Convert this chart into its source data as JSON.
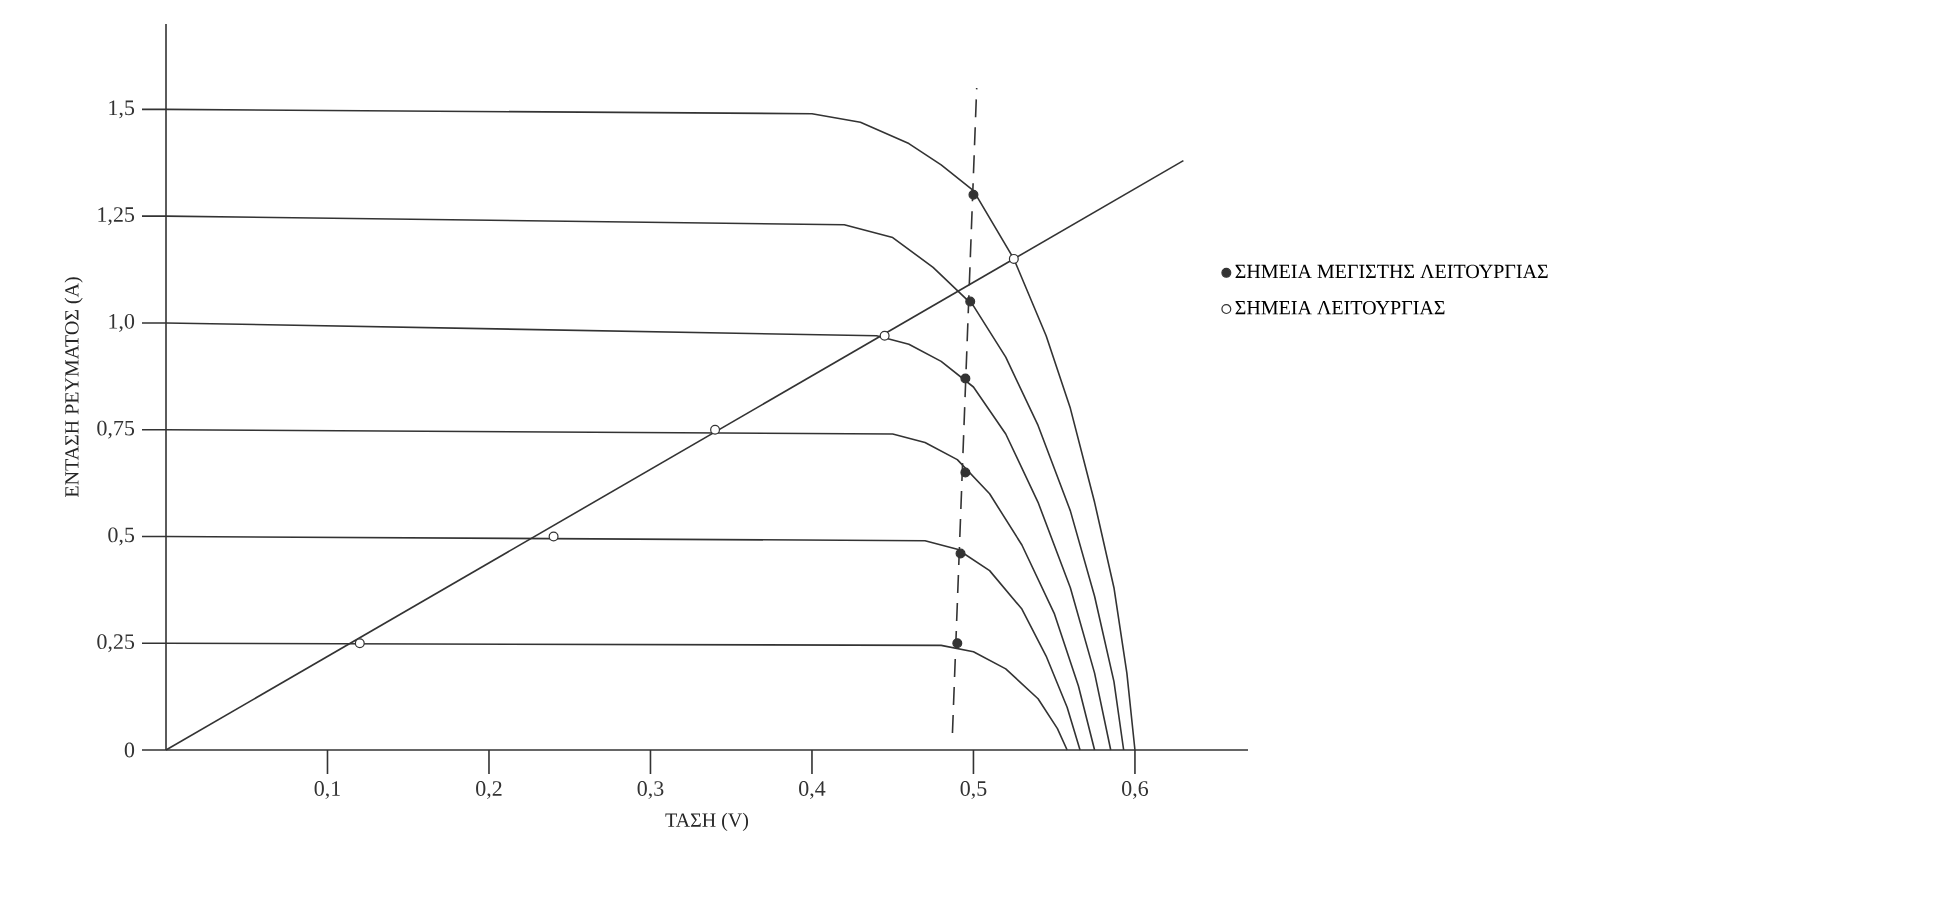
{
  "chart_data": {
    "type": "line",
    "xlabel": "ΤΑΣΗ (V)",
    "ylabel": "ΕΝΤΑΣΗ ΡΕΥΜΑΤΟΣ (A)",
    "xlim": [
      0,
      0.67
    ],
    "ylim": [
      0,
      1.7
    ],
    "xticks": [
      {
        "value": 0.1,
        "label": "0,1"
      },
      {
        "value": 0.2,
        "label": "0,2"
      },
      {
        "value": 0.3,
        "label": "0,3"
      },
      {
        "value": 0.4,
        "label": "0,4"
      },
      {
        "value": 0.5,
        "label": "0,5"
      },
      {
        "value": 0.6,
        "label": "0,6"
      }
    ],
    "yticks": [
      0,
      {
        "value": 0.25,
        "label": "0,25"
      },
      {
        "value": 0.5,
        "label": "0,5"
      },
      {
        "value": 0.75,
        "label": "0,75"
      },
      {
        "value": 1.0,
        "label": "1,0"
      },
      {
        "value": 1.25,
        "label": "1,25"
      },
      {
        "value": 1.5,
        "label": "1,5"
      }
    ],
    "grid": false,
    "legend": "right",
    "marker": "none",
    "line_style": "solid",
    "series": [
      {
        "color": "#333333",
        "x": [
          0,
          0.4,
          0.43,
          0.46,
          0.48,
          0.5,
          0.525,
          0.545,
          0.56,
          0.575,
          0.587,
          0.595,
          0.6
        ],
        "values": [
          1.5,
          1.49,
          1.47,
          1.42,
          1.37,
          1.31,
          1.15,
          0.97,
          0.8,
          0.58,
          0.38,
          0.18,
          0
        ]
      },
      {
        "color": "#333333",
        "x": [
          0,
          0.42,
          0.45,
          0.475,
          0.5,
          0.52,
          0.54,
          0.56,
          0.575,
          0.587,
          0.593
        ],
        "values": [
          1.25,
          1.23,
          1.2,
          1.13,
          1.04,
          0.92,
          0.76,
          0.56,
          0.36,
          0.16,
          0
        ]
      },
      {
        "color": "#333333",
        "x": [
          0,
          0.44,
          0.46,
          0.48,
          0.5,
          0.52,
          0.54,
          0.56,
          0.575,
          0.585
        ],
        "values": [
          1.0,
          0.97,
          0.95,
          0.91,
          0.85,
          0.74,
          0.58,
          0.38,
          0.18,
          0
        ]
      },
      {
        "color": "#333333",
        "x": [
          0,
          0.45,
          0.47,
          0.49,
          0.51,
          0.53,
          0.55,
          0.565,
          0.575
        ],
        "values": [
          0.75,
          0.74,
          0.72,
          0.68,
          0.6,
          0.48,
          0.32,
          0.15,
          0
        ]
      },
      {
        "color": "#333333",
        "x": [
          0,
          0.47,
          0.49,
          0.51,
          0.53,
          0.545,
          0.558,
          0.566
        ],
        "values": [
          0.5,
          0.49,
          0.47,
          0.42,
          0.33,
          0.22,
          0.1,
          0
        ]
      },
      {
        "color": "#333333",
        "x": [
          0,
          0.48,
          0.5,
          0.52,
          0.54,
          0.552,
          0.558
        ],
        "values": [
          0.25,
          0.245,
          0.23,
          0.19,
          0.12,
          0.05,
          0
        ]
      },
      {
        "color": "#333333",
        "x": [
          0,
          0.63
        ],
        "values": [
          0,
          1.38
        ]
      },
      {
        "color": "#333333",
        "line_style": "dashed",
        "x": [
          0.487,
          0.502
        ],
        "values": [
          0.04,
          1.55
        ]
      },
      {
        "type": "scatter",
        "name": "ΣΗΜΕΙΑ ΜΕΓΙΣΤΗΣ ΛΕΙΤΟΥΡΓΙΑΣ",
        "color": "#333333",
        "marker": "circle",
        "x": [
          0.49,
          0.492,
          0.495,
          0.495,
          0.498,
          0.5
        ],
        "values": [
          0.25,
          0.46,
          0.65,
          0.87,
          1.05,
          1.3
        ]
      },
      {
        "type": "scatter",
        "name": "ΣΗΜΕΙΑ ΛΕΙΤΟΥΡΓΙΑΣ",
        "color": "#ffffff",
        "marker": "circle",
        "x": [
          0.12,
          0.24,
          0.34,
          0.445,
          0.525
        ],
        "values": [
          0.25,
          0.5,
          0.75,
          0.97,
          1.15
        ]
      }
    ]
  }
}
